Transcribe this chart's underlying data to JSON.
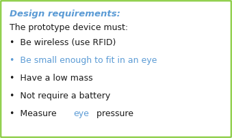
{
  "title": "Design requirements:",
  "subtitle": "The prototype device must:",
  "bullet_lines": [
    [
      {
        "text": "•  Be wireless (use RFID)",
        "color": "#1a1a1a"
      }
    ],
    [
      {
        "text": "•  Be small enough to fit in an eye",
        "color": "#5b9bd5"
      }
    ],
    [
      {
        "text": "•  Have a low mass",
        "color": "#1a1a1a"
      }
    ],
    [
      {
        "text": "•  Not require a battery",
        "color": "#1a1a1a"
      }
    ],
    [
      {
        "text": "•  Measure ",
        "color": "#1a1a1a"
      },
      {
        "text": "eye",
        "color": "#5b9bd5"
      },
      {
        "text": " pressure",
        "color": "#1a1a1a"
      }
    ]
  ],
  "title_color": "#5b9bd5",
  "text_color": "#1a1a1a",
  "border_color": "#92d050",
  "background_color": "#ffffff",
  "title_fontsize": 9.5,
  "body_fontsize": 9.0
}
